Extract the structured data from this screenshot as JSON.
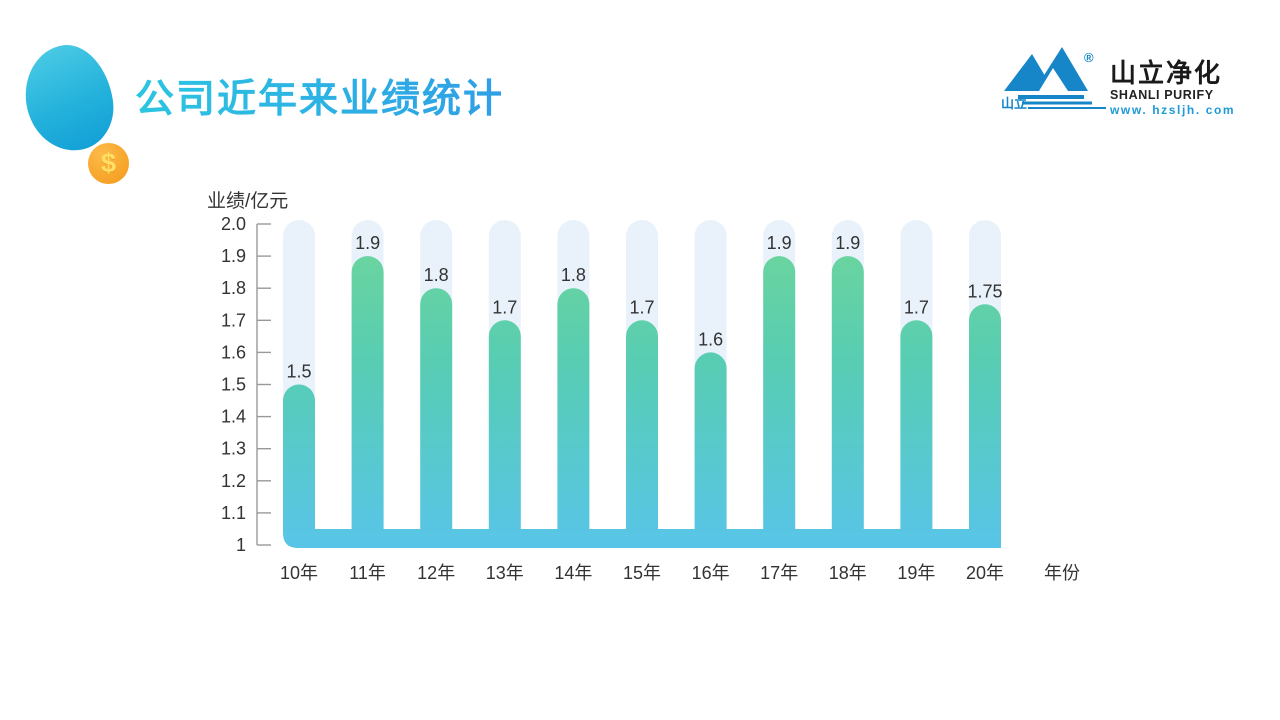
{
  "slide": {
    "title": "公司近年来业绩统计",
    "title_gradient": [
      "#2bc5e1",
      "#2f9fe6"
    ]
  },
  "logo": {
    "name_cn": "山立净化",
    "name_en": "SHANLI PURIFY",
    "website": "www. hzsljh. com",
    "mark_cn": "山立",
    "registered": "®",
    "blue": "#1686c8"
  },
  "decor": {
    "coin_symbol": "$",
    "coin_color": "#f7a428",
    "blob_colors": [
      "#48c9e4",
      "#13a0d6"
    ]
  },
  "chart_data": {
    "type": "bar",
    "title": "",
    "ylabel": "业绩/亿元",
    "xlabel": "年份",
    "categories": [
      "10年",
      "11年",
      "12年",
      "13年",
      "14年",
      "15年",
      "16年",
      "17年",
      "18年",
      "19年",
      "20年"
    ],
    "values": [
      1.5,
      1.9,
      1.8,
      1.7,
      1.8,
      1.7,
      1.6,
      1.9,
      1.9,
      1.7,
      1.75
    ],
    "value_labels": [
      "1.5",
      "1.9",
      "1.8",
      "1.7",
      "1.8",
      "1.7",
      "1.6",
      "1.9",
      "1.9",
      "1.7",
      "1.75"
    ],
    "ylim": [
      1,
      2.0
    ],
    "yticks": [
      1,
      1.1,
      1.2,
      1.3,
      1.4,
      1.5,
      1.6,
      1.7,
      1.8,
      1.9,
      2.0
    ],
    "ytick_labels": [
      "1",
      "1.1",
      "1.2",
      "1.3",
      "1.4",
      "1.5",
      "1.6",
      "1.7",
      "1.8",
      "1.9",
      "2.0"
    ],
    "grid": false,
    "legend": false,
    "track_max": 2.0,
    "colors": {
      "bar_gradient_top": "#6fd69a",
      "bar_gradient_mid": "#58cdb2",
      "bar_gradient_bottom": "#58c5e8",
      "track": "#e9f2fb",
      "axis": "#999999",
      "text": "#333333"
    }
  }
}
